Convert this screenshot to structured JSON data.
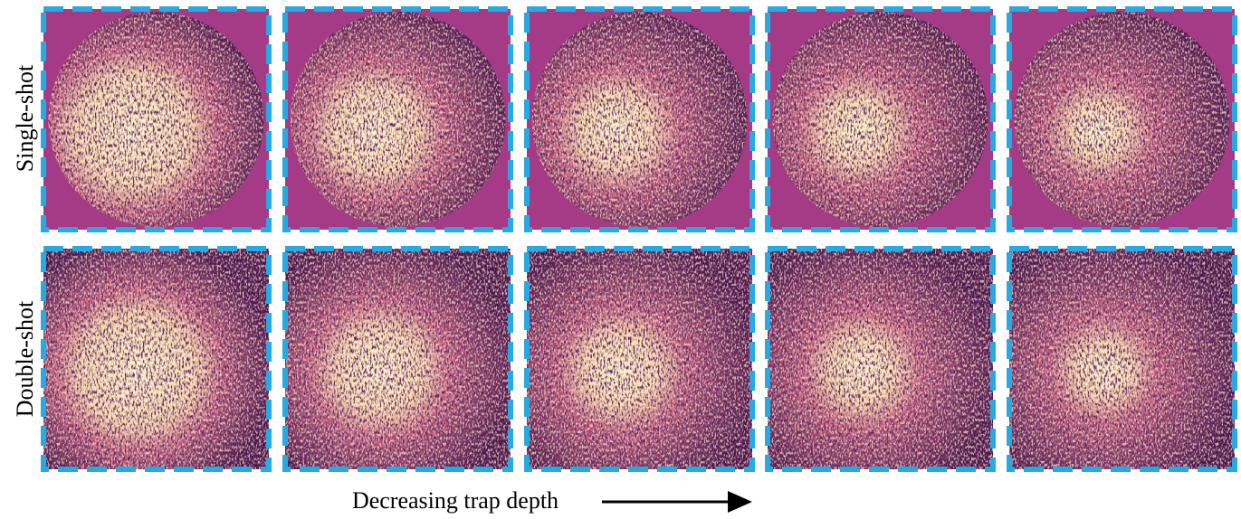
{
  "row_labels": [
    "Single-shot",
    "Double-shot"
  ],
  "x_label": "Decreasing trap depth"
}
